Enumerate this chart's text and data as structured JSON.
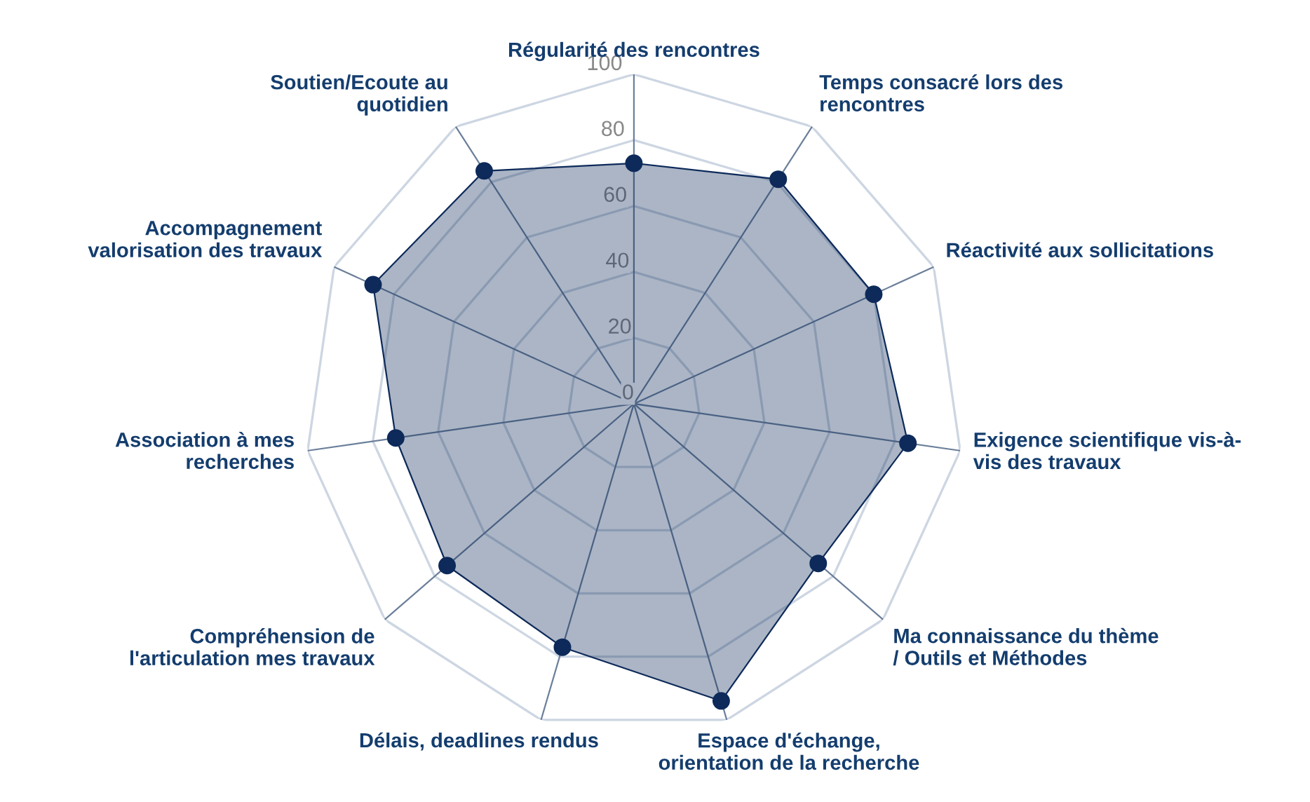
{
  "chart_data": {
    "type": "radar",
    "categories": [
      "Régularité des rencontres",
      "Temps consacré lors des\nrencontres",
      "Réactivité aux sollicitations",
      "Exigence scientifique vis-à-\nvis des travaux",
      "Ma connaissance du thème\n/ Outils et Méthodes",
      "Espace d'échange,\norientation de la recherche",
      "Délais, deadlines rendus",
      "Compréhension de\nl'articulation mes travaux",
      "Association à mes\nrecherches",
      "Accompagnement\nvalorisation des travaux",
      "Soutien/Ecoute au\nquotidien"
    ],
    "series": [
      {
        "color": "#0d2a5a",
        "values": [
          73,
          81,
          80,
          84,
          74,
          94,
          77,
          75,
          73,
          87,
          84
        ]
      }
    ],
    "ylim": [
      0,
      100
    ],
    "yticks": [
      0,
      20,
      40,
      60,
      80,
      100
    ],
    "grid": true,
    "marker": "circle",
    "legend": false
  }
}
